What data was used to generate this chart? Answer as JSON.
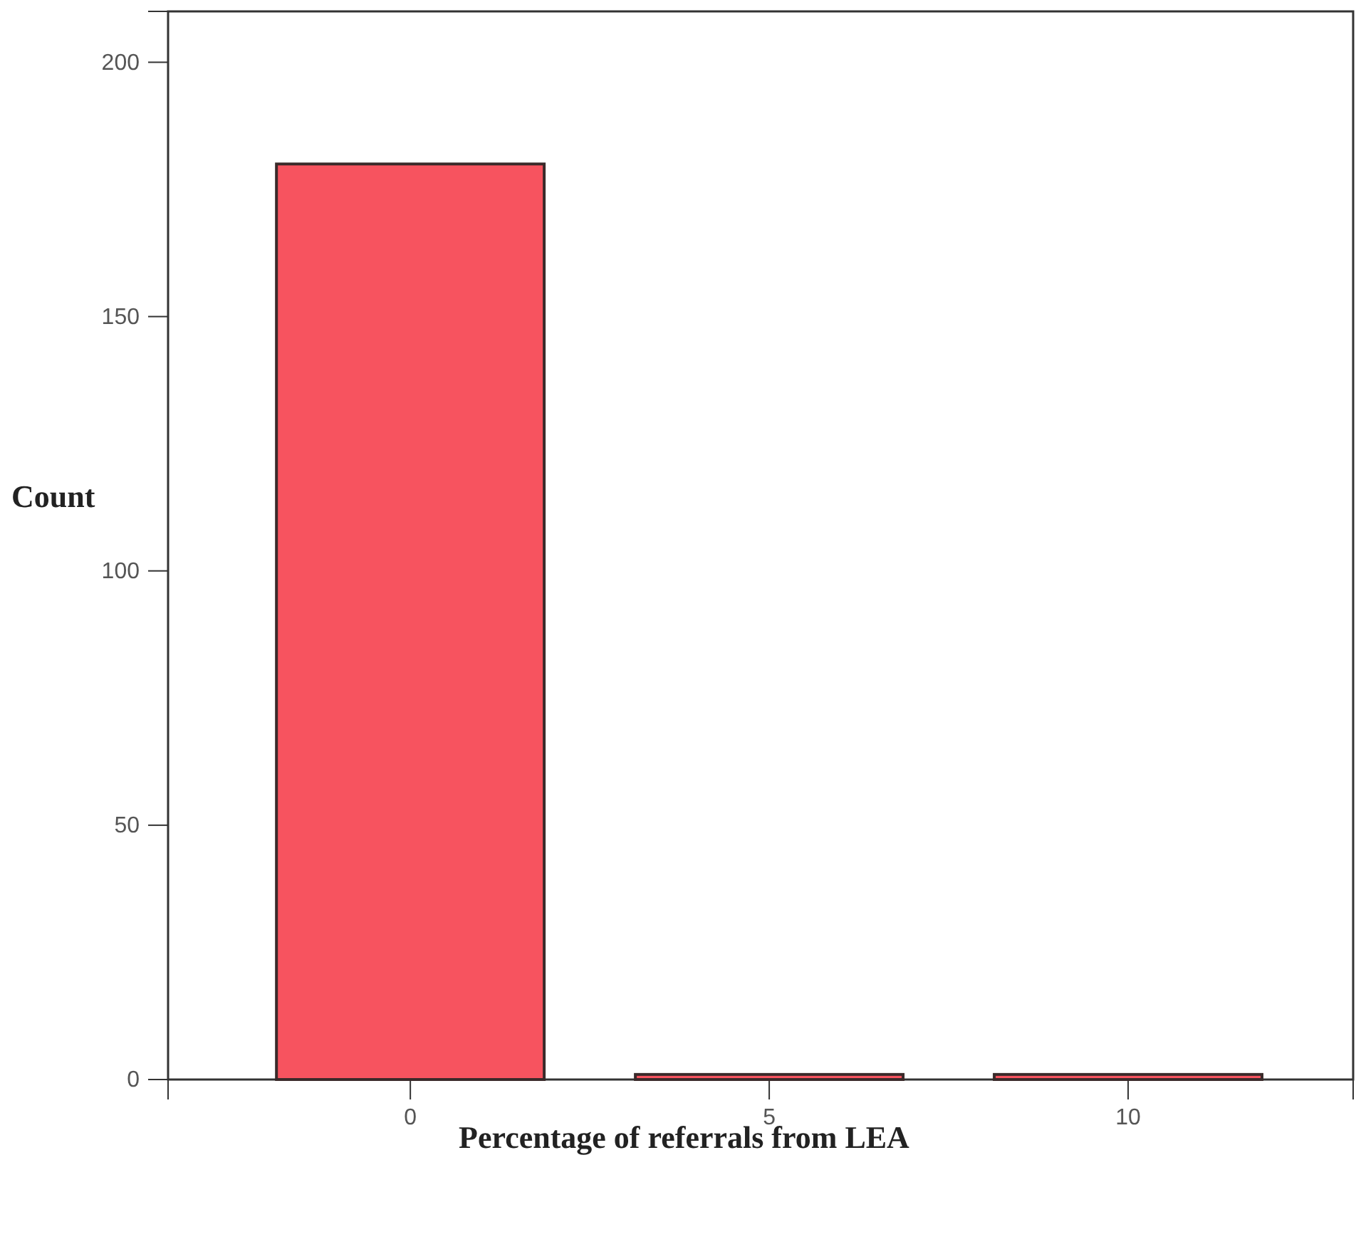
{
  "chart_data": {
    "type": "bar",
    "xlabel": "Percentage of referrals from LEA",
    "ylabel": "Count",
    "categories": [
      "0",
      "5",
      "10"
    ],
    "values": [
      180,
      1,
      1
    ],
    "color": "#f7535f",
    "ylim": [
      0,
      210
    ],
    "yticks": [
      0,
      50,
      100,
      150,
      200
    ]
  }
}
